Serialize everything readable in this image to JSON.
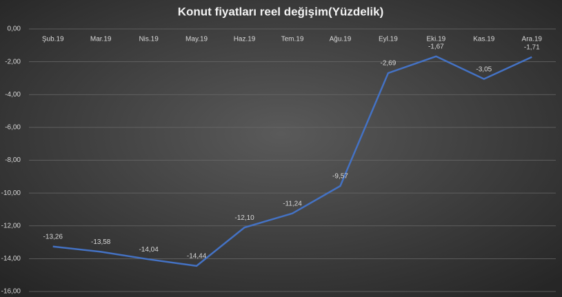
{
  "chart_data": {
    "type": "line",
    "title": "Konut fiyatları reel değişim(Yüzdelik)",
    "categories": [
      "Şub.19",
      "Mar.19",
      "Nis.19",
      "May.19",
      "Haz.19",
      "Tem.19",
      "Ağu.19",
      "Eyl.19",
      "Eki.19",
      "Kas.19",
      "Ara.19"
    ],
    "series": [
      {
        "name": "Konut fiyatları reel değişim",
        "color": "#4472c4",
        "values": [
          -13.26,
          -13.58,
          -14.04,
          -14.44,
          -12.1,
          -11.24,
          -9.57,
          -2.69,
          -1.67,
          -3.05,
          -1.71
        ],
        "value_labels": [
          "-13,26",
          "-13,58",
          "-14,04",
          "-14,44",
          "-12,10",
          "-11,24",
          "-9,57",
          "-2,69",
          "-1,67",
          "-3,05",
          "-1,71"
        ]
      }
    ],
    "ylim": [
      -16,
      0
    ],
    "yticks": [
      {
        "value": 0,
        "label": "0,00"
      },
      {
        "value": -2,
        "label": "-2,00"
      },
      {
        "value": -4,
        "label": "-4,00"
      },
      {
        "value": -6,
        "label": "-6,00"
      },
      {
        "value": -8,
        "label": "-8,00"
      },
      {
        "value": -10,
        "label": "-10,00"
      },
      {
        "value": -12,
        "label": "-12,00"
      },
      {
        "value": -14,
        "label": "-14,00"
      },
      {
        "value": -16,
        "label": "-16,00"
      }
    ],
    "grid": true
  }
}
